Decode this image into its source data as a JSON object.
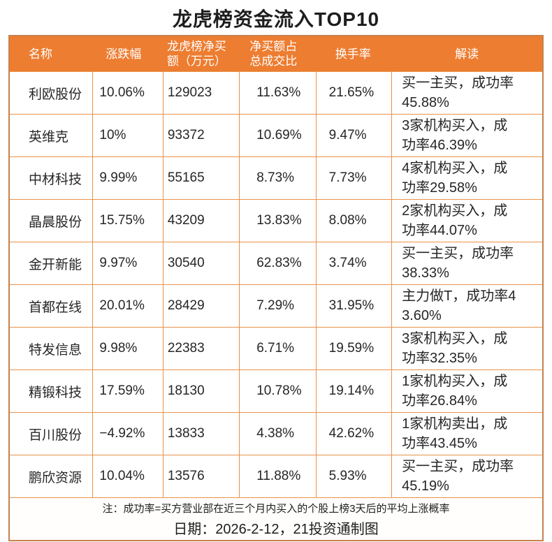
{
  "title": "龙虎榜资金流入TOP10",
  "table": {
    "headers": {
      "name": "名称",
      "change": "涨跌幅",
      "net_buy": "龙虎榜净买\n额（万元）",
      "ratio": "净买额占\n总成交比",
      "turnover": "换手率",
      "analysis": "解读"
    }
  },
  "chart_data": {
    "type": "table",
    "title": "龙虎榜资金流入TOP10",
    "columns": [
      "名称",
      "涨跌幅",
      "龙虎榜净买额（万元）",
      "净买额占总成交比",
      "换手率",
      "解读"
    ],
    "rows": [
      {
        "name": "利欧股份",
        "change": "10.06%",
        "net_buy": "129023",
        "ratio": "11.63%",
        "turnover": "21.65%",
        "analysis": "买一主买，成功率45.88%"
      },
      {
        "name": "英维克",
        "change": "10%",
        "net_buy": "93372",
        "ratio": "10.69%",
        "turnover": "9.47%",
        "analysis": "3家机构买入，成功率46.39%"
      },
      {
        "name": "中材科技",
        "change": "9.99%",
        "net_buy": "55165",
        "ratio": "8.73%",
        "turnover": "7.73%",
        "analysis": "4家机构买入，成功率29.58%"
      },
      {
        "name": "晶晨股份",
        "change": "15.75%",
        "net_buy": "43209",
        "ratio": "13.83%",
        "turnover": "8.08%",
        "analysis": "2家机构买入，成功率44.07%"
      },
      {
        "name": "金开新能",
        "change": "9.97%",
        "net_buy": "30540",
        "ratio": "62.83%",
        "turnover": "3.74%",
        "analysis": "买一主买，成功率38.33%"
      },
      {
        "name": "首都在线",
        "change": "20.01%",
        "net_buy": "28429",
        "ratio": "7.29%",
        "turnover": "31.95%",
        "analysis": "主力做T，成功率43.60%"
      },
      {
        "name": "特发信息",
        "change": "9.98%",
        "net_buy": "22383",
        "ratio": "6.71%",
        "turnover": "19.59%",
        "analysis": "3家机构买入，成功率32.35%"
      },
      {
        "name": "精锻科技",
        "change": "17.59%",
        "net_buy": "18130",
        "ratio": "10.78%",
        "turnover": "19.14%",
        "analysis": "1家机构买入，成功率26.84%"
      },
      {
        "name": "百川股份",
        "change": "−4.92%",
        "net_buy": "13833",
        "ratio": "4.38%",
        "turnover": "42.62%",
        "analysis": "1家机构卖出，成功率43.45%"
      },
      {
        "name": "鹏欣资源",
        "change": "10.04%",
        "net_buy": "13576",
        "ratio": "11.88%",
        "turnover": "5.93%",
        "analysis": "买一主买，成功率45.19%"
      }
    ],
    "note": "注：成功率=买方营业部在近三个月内买入的个股上榜3天后的平均上涨概率",
    "date_line": "日期：2026-2-12，21投资通制图"
  },
  "footer": {
    "note": "注：成功率=买方营业部在近三个月内买入的个股上榜3天后的平均上涨概率",
    "date_line": "日期：2026-2-12，21投资通制图"
  },
  "colors": {
    "header_bg": "#ED7D31",
    "header_text": "#FFFFFF",
    "inner_border": "#E9924A",
    "outer_border": "#C6824F"
  }
}
